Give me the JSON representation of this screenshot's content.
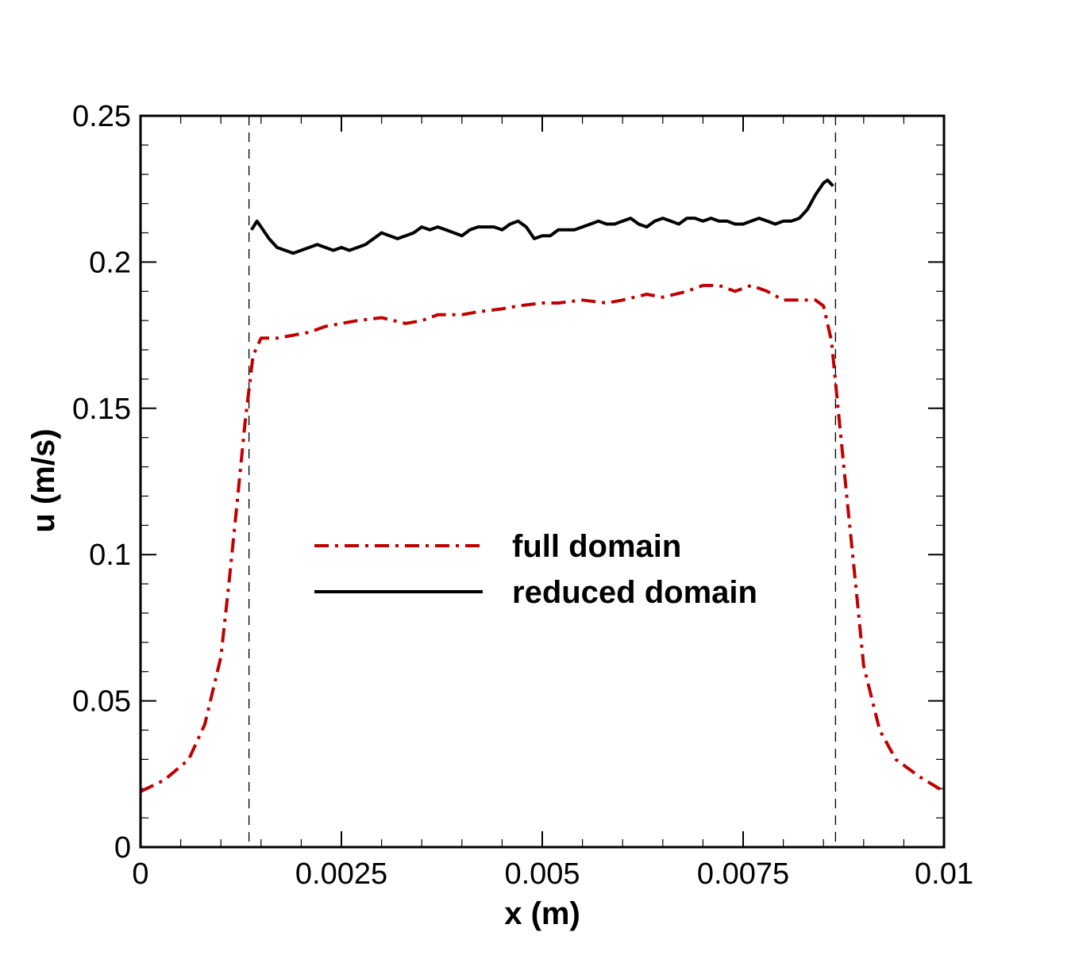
{
  "chart_data": {
    "type": "line",
    "xlabel": "x (m)",
    "ylabel": "u (m/s)",
    "xlim": [
      0,
      0.01
    ],
    "ylim": [
      0,
      0.25
    ],
    "x_ticks": [
      "0",
      "0.0025",
      "0.005",
      "0.0075",
      "0.01"
    ],
    "x_tick_values": [
      0,
      0.0025,
      0.005,
      0.0075,
      0.01
    ],
    "y_ticks": [
      "0",
      "0.05",
      "0.1",
      "0.15",
      "0.2",
      "0.25"
    ],
    "y_tick_values": [
      0,
      0.05,
      0.1,
      0.15,
      0.2,
      0.25
    ],
    "x_minor_step": 0.0005,
    "y_minor_step": 0.01,
    "grid": false,
    "legend_position": "center",
    "vlines": [
      0.00135,
      0.00865
    ],
    "series": [
      {
        "name": "full domain",
        "color": "#c00000",
        "dash": "dashdot",
        "x": [
          0,
          0.0003,
          0.0006,
          0.0008,
          0.001,
          0.0011,
          0.0012,
          0.0013,
          0.0014,
          0.0015,
          0.0017,
          0.0019,
          0.0021,
          0.0023,
          0.0025,
          0.0027,
          0.003,
          0.0033,
          0.0035,
          0.0037,
          0.004,
          0.0042,
          0.0045,
          0.0047,
          0.005,
          0.0052,
          0.0055,
          0.0058,
          0.006,
          0.0063,
          0.0065,
          0.0068,
          0.007,
          0.0072,
          0.0074,
          0.0076,
          0.0078,
          0.008,
          0.0082,
          0.0084,
          0.0085,
          0.0086,
          0.0087,
          0.0088,
          0.0089,
          0.009,
          0.0092,
          0.0094,
          0.0097,
          0.01
        ],
        "y": [
          0.019,
          0.023,
          0.03,
          0.042,
          0.065,
          0.09,
          0.117,
          0.145,
          0.168,
          0.174,
          0.174,
          0.175,
          0.176,
          0.178,
          0.179,
          0.18,
          0.181,
          0.179,
          0.18,
          0.182,
          0.182,
          0.183,
          0.184,
          0.185,
          0.186,
          0.186,
          0.187,
          0.186,
          0.187,
          0.189,
          0.188,
          0.19,
          0.192,
          0.192,
          0.19,
          0.192,
          0.19,
          0.187,
          0.187,
          0.187,
          0.185,
          0.173,
          0.145,
          0.117,
          0.09,
          0.062,
          0.04,
          0.03,
          0.024,
          0.019
        ]
      },
      {
        "name": "reduced domain",
        "color": "#000000",
        "dash": "solid",
        "x": [
          0.00138,
          0.00145,
          0.0015,
          0.0016,
          0.0017,
          0.0018,
          0.0019,
          0.002,
          0.0021,
          0.0022,
          0.0023,
          0.0024,
          0.0025,
          0.0026,
          0.0027,
          0.0028,
          0.0029,
          0.003,
          0.0031,
          0.0032,
          0.0033,
          0.0034,
          0.0035,
          0.0036,
          0.0037,
          0.0038,
          0.0039,
          0.004,
          0.0041,
          0.0042,
          0.0043,
          0.0044,
          0.0045,
          0.0046,
          0.0047,
          0.0048,
          0.0049,
          0.005,
          0.0051,
          0.0052,
          0.0053,
          0.0054,
          0.0055,
          0.0056,
          0.0057,
          0.0058,
          0.0059,
          0.006,
          0.0061,
          0.0062,
          0.0063,
          0.0064,
          0.0065,
          0.0066,
          0.0067,
          0.0068,
          0.0069,
          0.007,
          0.0071,
          0.0072,
          0.0073,
          0.0074,
          0.0075,
          0.0076,
          0.0077,
          0.0078,
          0.0079,
          0.008,
          0.0081,
          0.0082,
          0.0083,
          0.0084,
          0.0085,
          0.00855,
          0.00862
        ],
        "y": [
          0.211,
          0.214,
          0.212,
          0.208,
          0.205,
          0.204,
          0.203,
          0.204,
          0.205,
          0.206,
          0.205,
          0.204,
          0.205,
          0.204,
          0.205,
          0.206,
          0.208,
          0.21,
          0.209,
          0.208,
          0.209,
          0.21,
          0.212,
          0.211,
          0.212,
          0.211,
          0.21,
          0.209,
          0.211,
          0.212,
          0.212,
          0.212,
          0.211,
          0.213,
          0.214,
          0.212,
          0.208,
          0.209,
          0.209,
          0.211,
          0.211,
          0.211,
          0.212,
          0.213,
          0.214,
          0.213,
          0.213,
          0.214,
          0.215,
          0.213,
          0.212,
          0.214,
          0.215,
          0.214,
          0.213,
          0.215,
          0.215,
          0.214,
          0.215,
          0.214,
          0.214,
          0.213,
          0.213,
          0.214,
          0.215,
          0.214,
          0.213,
          0.214,
          0.214,
          0.215,
          0.218,
          0.223,
          0.227,
          0.228,
          0.226
        ]
      }
    ]
  }
}
